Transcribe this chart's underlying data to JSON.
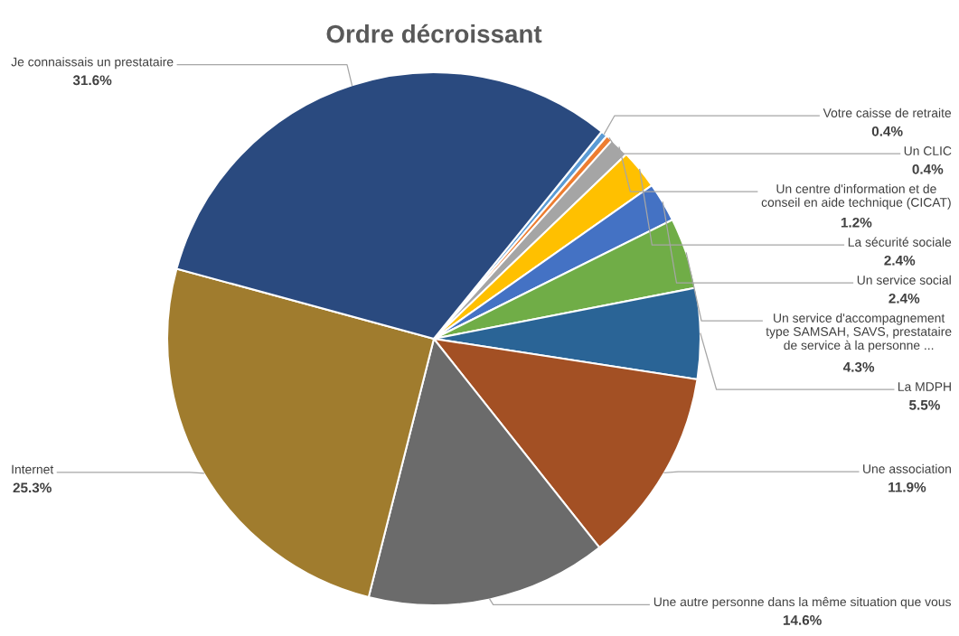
{
  "chart_data": {
    "type": "pie",
    "title": "Ordre décroissant",
    "categories": [
      "Votre caisse de retraite",
      "Un CLIC",
      "Un centre d'information et de\nconseil en aide technique (CICAT)",
      "La sécurité sociale",
      "Un service social",
      "Un service d'accompagnement\ntype SAMSAH, SAVS, prestataire\nde service à la personne ...",
      "La MDPH",
      "Une association",
      "Une autre personne dans la même situation que vous",
      "Internet",
      "Je connaissais un prestataire"
    ],
    "values": [
      0.4,
      0.4,
      1.2,
      2.4,
      2.4,
      4.3,
      5.5,
      11.9,
      14.6,
      25.3,
      31.6
    ],
    "value_labels": [
      "0.4%",
      "0.4%",
      "1.2%",
      "2.4%",
      "2.4%",
      "4.3%",
      "5.5%",
      "11.9%",
      "14.6%",
      "25.3%",
      "31.6%"
    ],
    "colors": [
      "#5b9bd5",
      "#ed7d31",
      "#a5a5a5",
      "#ffc000",
      "#4472c4",
      "#70ad47",
      "#2a6496",
      "#a35024",
      "#6b6b6b",
      "#a07c2e",
      "#2a4a7f"
    ]
  }
}
